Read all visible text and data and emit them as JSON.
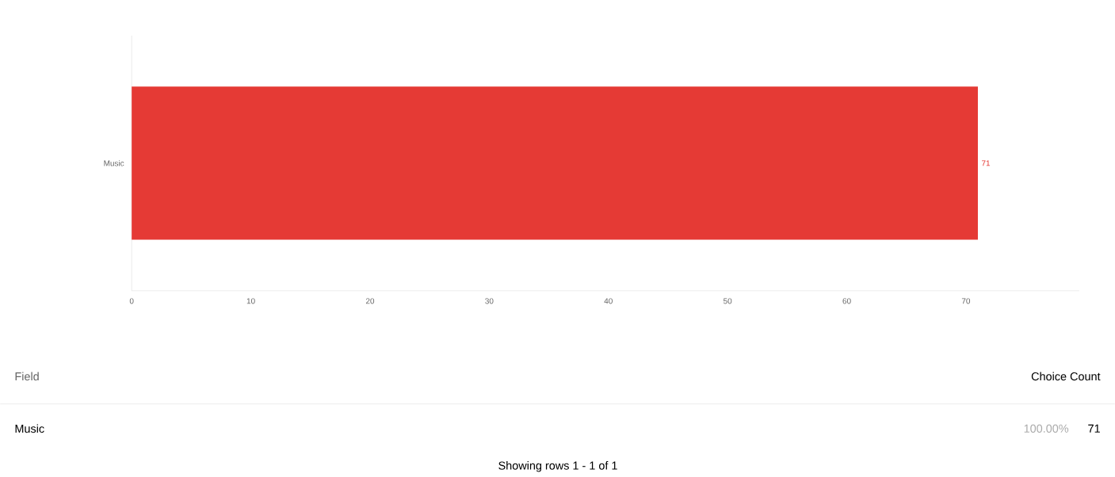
{
  "chart_data": {
    "type": "bar",
    "orientation": "horizontal",
    "categories": [
      "Music"
    ],
    "values": [
      71
    ],
    "color": "#e53a35",
    "xlim": [
      0,
      79.5
    ],
    "xticks": [
      0,
      10,
      20,
      30,
      40,
      50,
      60,
      70
    ],
    "data_labels": true,
    "annotations": [
      "Field",
      "Choice Count",
      "Music",
      "100.00%",
      "71",
      "Showing rows 1 - 1 of 1"
    ]
  }
}
